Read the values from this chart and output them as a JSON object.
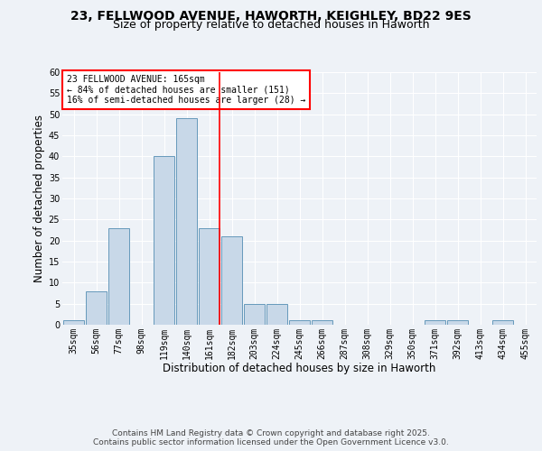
{
  "title_line1": "23, FELLWOOD AVENUE, HAWORTH, KEIGHLEY, BD22 9ES",
  "title_line2": "Size of property relative to detached houses in Haworth",
  "xlabel": "Distribution of detached houses by size in Haworth",
  "ylabel": "Number of detached properties",
  "bins": [
    "35sqm",
    "56sqm",
    "77sqm",
    "98sqm",
    "119sqm",
    "140sqm",
    "161sqm",
    "182sqm",
    "203sqm",
    "224sqm",
    "245sqm",
    "266sqm",
    "287sqm",
    "308sqm",
    "329sqm",
    "350sqm",
    "371sqm",
    "392sqm",
    "413sqm",
    "434sqm",
    "455sqm"
  ],
  "values": [
    1,
    8,
    23,
    0,
    40,
    49,
    23,
    21,
    5,
    5,
    1,
    1,
    0,
    0,
    0,
    0,
    1,
    1,
    0,
    1,
    0
  ],
  "bar_color": "#c8d8e8",
  "bar_edge_color": "#6699bb",
  "red_line_bin_index": 6,
  "annotation_text": "23 FELLWOOD AVENUE: 165sqm\n← 84% of detached houses are smaller (151)\n16% of semi-detached houses are larger (28) →",
  "annotation_box_color": "white",
  "annotation_box_edge_color": "red",
  "red_line_color": "red",
  "ylim": [
    0,
    60
  ],
  "yticks": [
    0,
    5,
    10,
    15,
    20,
    25,
    30,
    35,
    40,
    45,
    50,
    55,
    60
  ],
  "background_color": "#eef2f7",
  "footer_text": "Contains HM Land Registry data © Crown copyright and database right 2025.\nContains public sector information licensed under the Open Government Licence v3.0.",
  "title_fontsize": 10,
  "subtitle_fontsize": 9,
  "axis_label_fontsize": 8.5,
  "tick_fontsize": 7,
  "footer_fontsize": 6.5
}
